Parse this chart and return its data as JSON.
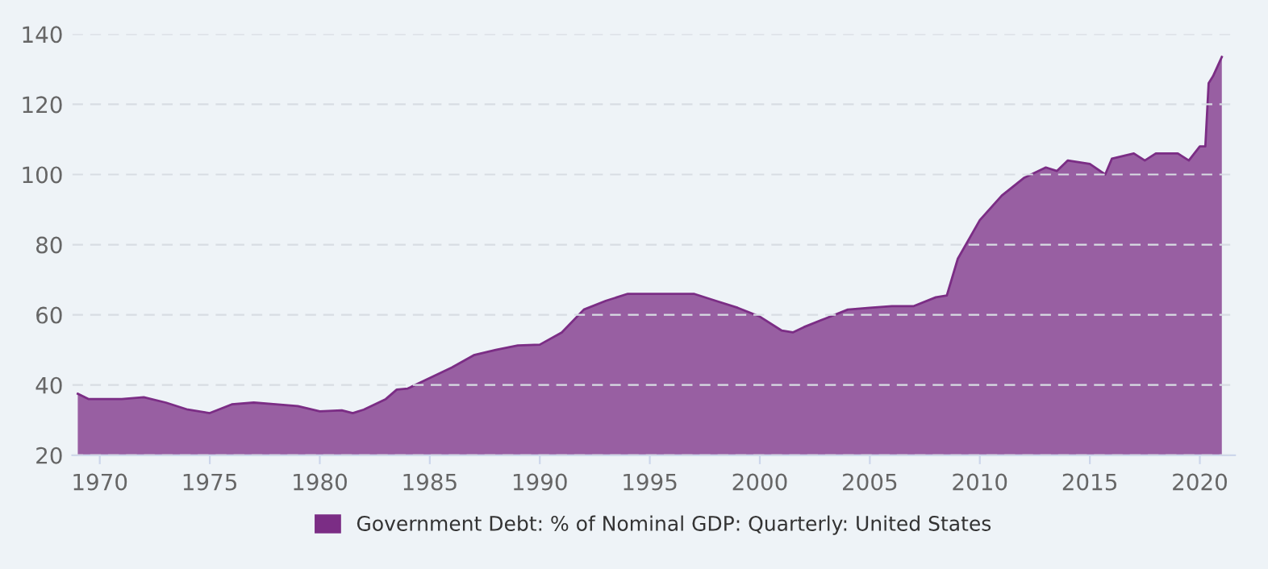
{
  "chart_data": {
    "type": "area",
    "xlim": [
      1968.75,
      2021.6
    ],
    "ylim": [
      20,
      140
    ],
    "xticks": [
      1970,
      1975,
      1980,
      1985,
      1990,
      1995,
      2000,
      2005,
      2010,
      2015,
      2020
    ],
    "yticks": [
      20,
      40,
      60,
      80,
      100,
      120,
      140
    ],
    "grid": "y",
    "legend": "bottom",
    "series": [
      {
        "name": "Government Debt: % of Nominal GDP: Quarterly: United States",
        "color": "#7b2d85",
        "x": [
          1969,
          1969.5,
          1970,
          1971,
          1972,
          1973,
          1974,
          1975,
          1976,
          1977,
          1978,
          1979,
          1980,
          1981,
          1981.5,
          1982,
          1983,
          1983.5,
          1984,
          1985,
          1986,
          1987,
          1988,
          1989,
          1990,
          1991,
          1992,
          1993,
          1994,
          1995,
          1996,
          1997,
          1998,
          1999,
          2000,
          2001,
          2001.5,
          2002,
          2003,
          2004,
          2005,
          2006,
          2007,
          2008,
          2008.5,
          2009,
          2010,
          2011,
          2012,
          2013,
          2013.5,
          2014,
          2015,
          2015.7,
          2016,
          2017,
          2017.5,
          2018,
          2019,
          2019.5,
          2020,
          2020.25,
          2020.4,
          2020.6,
          2021
        ],
        "values": [
          37.5,
          36,
          36,
          36,
          36.5,
          35,
          33,
          32,
          34.5,
          35,
          34.5,
          34,
          32.5,
          32.8,
          32,
          33,
          36,
          38.7,
          39,
          42,
          45,
          48.5,
          50,
          51.3,
          51.5,
          55,
          61.5,
          64,
          66,
          66,
          66,
          66,
          64,
          62,
          59.5,
          55.5,
          55,
          56.5,
          59,
          61.5,
          62,
          62.5,
          62.5,
          65,
          65.5,
          76,
          87,
          94,
          99,
          102,
          101,
          104,
          103,
          100,
          104.5,
          106,
          104,
          106,
          106,
          104,
          108,
          108,
          126,
          128,
          133.5
        ]
      }
    ]
  }
}
